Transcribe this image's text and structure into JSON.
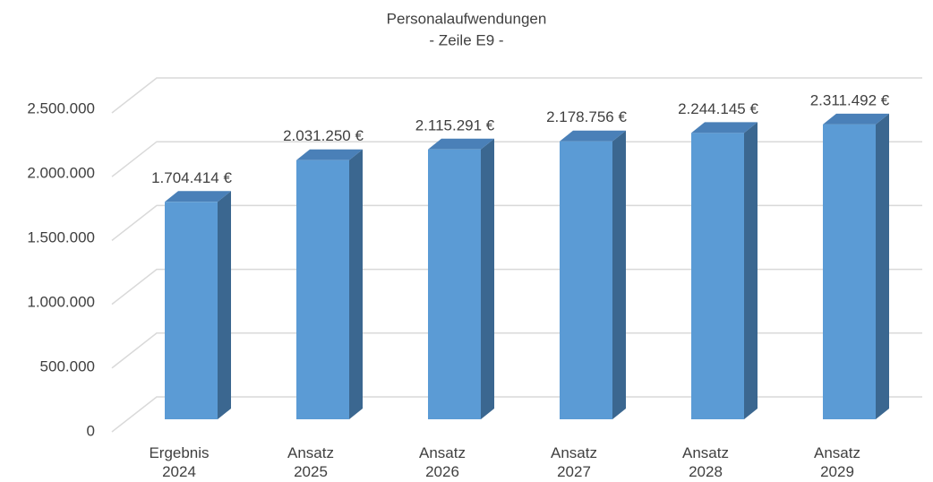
{
  "chart_data": {
    "type": "bar3d",
    "title": "Personalaufwendungen",
    "subtitle": "- Zeile E9 -",
    "categories": [
      "Ergebnis\n2024",
      "Ansatz\n2025",
      "Ansatz\n2026",
      "Ansatz\n2027",
      "Ansatz\n2028",
      "Ansatz\n2029"
    ],
    "values": [
      1704414,
      2031250,
      2115291,
      2178756,
      2244145,
      2311492
    ],
    "value_labels": [
      "1.704.414 €",
      "2.031.250 €",
      "2.115.291 €",
      "2.178.756 €",
      "2.244.145 €",
      "2.311.492 €"
    ],
    "color": "#5b9bd5",
    "ylim": [
      0,
      2500000
    ],
    "yticks": [
      0,
      {
        "value": 500000,
        "label": "500.000"
      },
      {
        "value": 1000000,
        "label": "1.000.000"
      },
      {
        "value": 1500000,
        "label": "1.500.000"
      },
      {
        "value": 2000000,
        "label": "2.000.000"
      },
      {
        "value": 2500000,
        "label": "2.500.000"
      }
    ],
    "grid": true
  }
}
